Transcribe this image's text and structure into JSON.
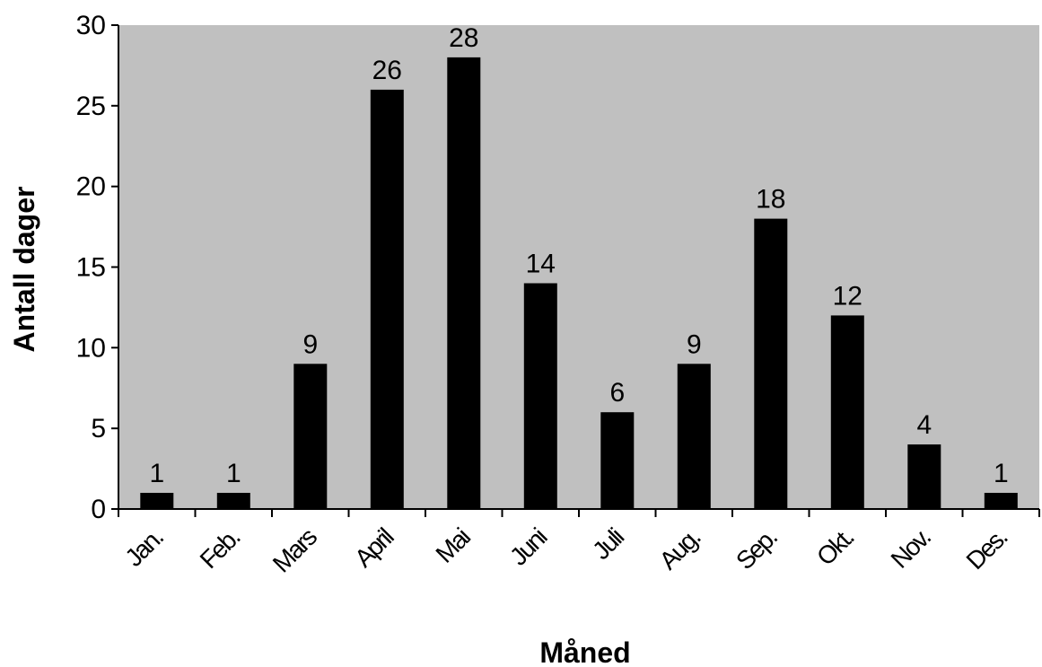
{
  "chart_data": {
    "type": "bar",
    "title": "",
    "xlabel": "Måned",
    "ylabel": "Antall dager",
    "categories": [
      "Jan.",
      "Feb.",
      "Mars",
      "April",
      "Mai",
      "Juni",
      "Juli",
      "Aug.",
      "Sep.",
      "Okt.",
      "Nov.",
      "Des."
    ],
    "values": [
      1,
      1,
      9,
      26,
      28,
      14,
      6,
      9,
      18,
      12,
      4,
      1
    ],
    "ylim": [
      0,
      30
    ],
    "yticks": [
      0,
      5,
      10,
      15,
      20,
      25,
      30
    ],
    "grid": false,
    "data_labels": true,
    "legend": "none",
    "colors": {
      "plot_background": "#c0c0c0",
      "bar": "#000000",
      "axis": "#000000"
    }
  }
}
